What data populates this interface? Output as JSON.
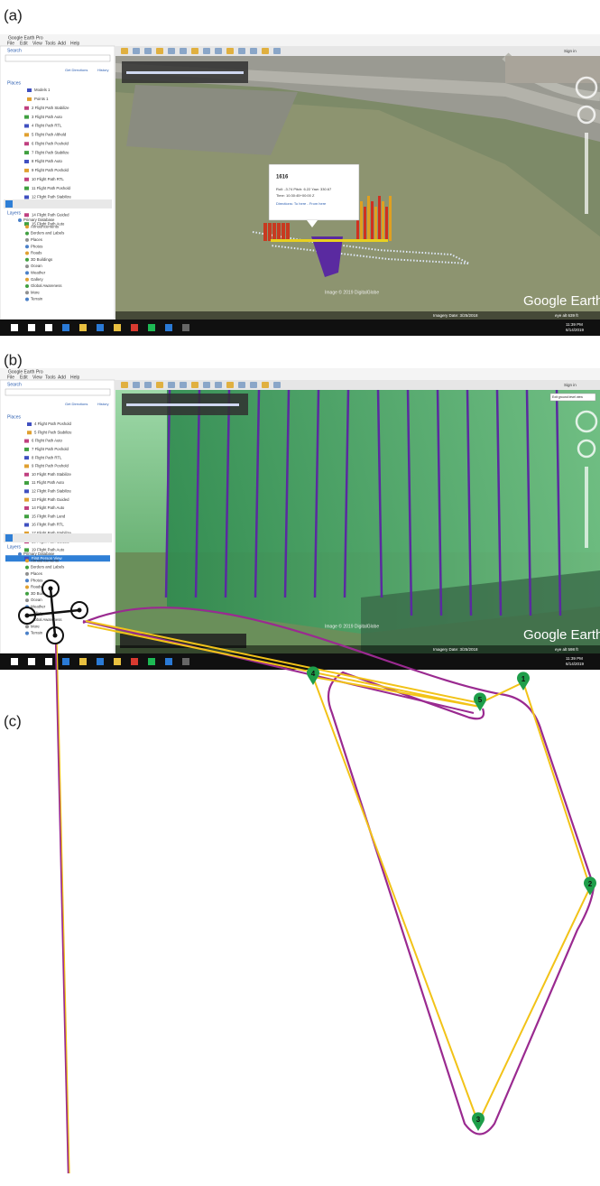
{
  "panels": [
    {
      "label": "(a)",
      "app_title": "Google Earth Pro",
      "menu": [
        "File",
        "Edit",
        "View",
        "Tools",
        "Add",
        "Help"
      ],
      "search": "Search",
      "directions": "Get Directions",
      "history": "History",
      "sign_in": "Sign in",
      "places_header": "Places",
      "places": [
        "Models 1",
        "Points 1",
        "2 Flight Path Stabilize",
        "3 Flight Path Auto",
        "4 Flight Path RTL",
        "5 Flight Path Althold",
        "6 Flight Path Poshold",
        "7 Flight Path Stabilize",
        "8 Flight Path Auto",
        "9 Flight Path Poshold",
        "10 Flight Path RTL",
        "11 Flight Path Poshold",
        "12 Flight Path Stabilize",
        "13 Flight Path Auto",
        "14 Flight Path Guided",
        "15 Flight Path Auto"
      ],
      "layers_header": "Layers",
      "layers": [
        "Primary Database",
        "Announcements",
        "Borders and Labels",
        "Places",
        "Photos",
        "Roads",
        "3D Buildings",
        "Ocean",
        "Weather",
        "Gallery",
        "Global Awareness",
        "More",
        "Terrain"
      ],
      "popup": {
        "title": "1616",
        "lines": [
          "Roll: -3.74 Pitch: 6.22 Yaw: 330.67",
          "Time: 10:30:45+00:00 Z"
        ],
        "links": "Directions: To here - From here"
      },
      "watermark": "Google Earth",
      "credit": "Image © 2019 DigitalGlobe",
      "status": "Imagery Date: 3/25/2018",
      "eye": "eye alt 639 ft",
      "clock": "11:39 PM",
      "date": "6/14/2019"
    },
    {
      "label": "(b)",
      "app_title": "Google Earth Pro",
      "menu": [
        "File",
        "Edit",
        "View",
        "Tools",
        "Add",
        "Help"
      ],
      "search": "Search",
      "directions": "Get Directions",
      "history": "History",
      "sign_in": "Sign in",
      "places_header": "Places",
      "places": [
        "4 Flight Path Poshold",
        "5 Flight Path Stabilize",
        "6 Flight Path Auto",
        "7 Flight Path Poshold",
        "8 Flight Path RTL",
        "9 Flight Path Poshold",
        "10 Flight Path Stabilize",
        "11 Flight Path Auto",
        "12 Flight Path Stabilize",
        "13 Flight Path Guided",
        "14 Flight Path Auto",
        "15 Flight Path Land",
        "16 Flight Path RTL",
        "17 Flight Path Stabilize",
        "18 Flight Path Guided",
        "19 Flight Path Auto",
        "First Person View"
      ],
      "layers_header": "Layers",
      "layers": [
        "Primary Database",
        "Announcements",
        "Borders and Labels",
        "Places",
        "Photos",
        "Roads",
        "3D Buildings",
        "Ocean",
        "Weather",
        "Gallery",
        "Global Awareness",
        "More",
        "Terrain"
      ],
      "ground_button": "Exit ground level view",
      "watermark": "Google Earth",
      "credit": "Image © 2019 DigitalGlobe",
      "status": "Imagery Date: 3/25/2018",
      "eye": "eye alt 598 ft",
      "clock": "11:39 PM",
      "date": "6/14/2019"
    }
  ],
  "diagram": {
    "label": "(c)",
    "waypoints": [
      "1",
      "2",
      "3",
      "4",
      "5"
    ]
  }
}
